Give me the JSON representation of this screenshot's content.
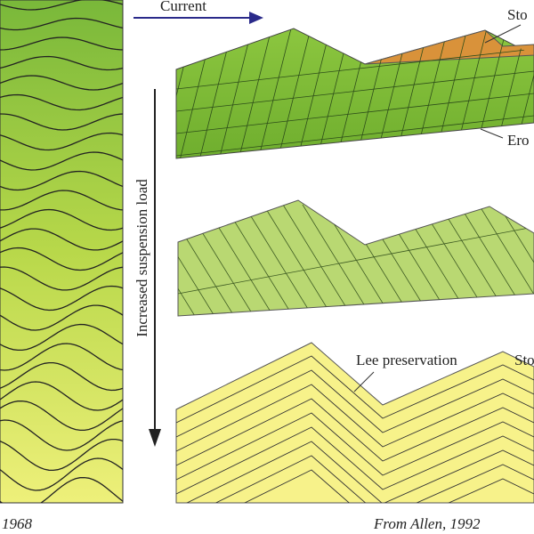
{
  "header": {
    "current_label": "Current"
  },
  "labels": {
    "top_stoss": "Sto",
    "erosion": "Ero",
    "axis": "Increased suspension load",
    "lee": "Lee preservation",
    "bottom_stoss": "Sto"
  },
  "credits": {
    "left": "1968",
    "right": "From Allen, 1992"
  }
}
